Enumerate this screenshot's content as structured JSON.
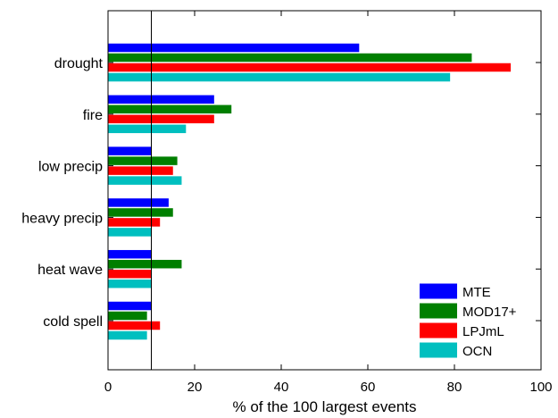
{
  "chart_data": {
    "type": "bar",
    "orientation": "horizontal",
    "categories": [
      "drought",
      "fire",
      "low precip",
      "heavy precip",
      "heat wave",
      "cold spell"
    ],
    "series": [
      {
        "name": "MTE",
        "color": "#0000ff",
        "values": [
          58,
          24.5,
          10,
          14,
          10,
          10
        ]
      },
      {
        "name": "MOD17+",
        "color": "#007f00",
        "values": [
          84,
          28.5,
          16,
          15,
          17,
          9
        ]
      },
      {
        "name": "LPJmL",
        "color": "#ff0000",
        "values": [
          93,
          24.5,
          15,
          12,
          10,
          12
        ]
      },
      {
        "name": "OCN",
        "color": "#00bfbf",
        "values": [
          79,
          18,
          17,
          10,
          10,
          9
        ]
      }
    ],
    "xlabel": "% of the 100 largest events",
    "ylabel": "",
    "xlim": [
      0,
      100
    ],
    "xticks": [
      "0",
      "20",
      "40",
      "60",
      "80",
      "100"
    ],
    "reference_line_x": 10,
    "legend_position": "bottom-right",
    "grid": false
  }
}
